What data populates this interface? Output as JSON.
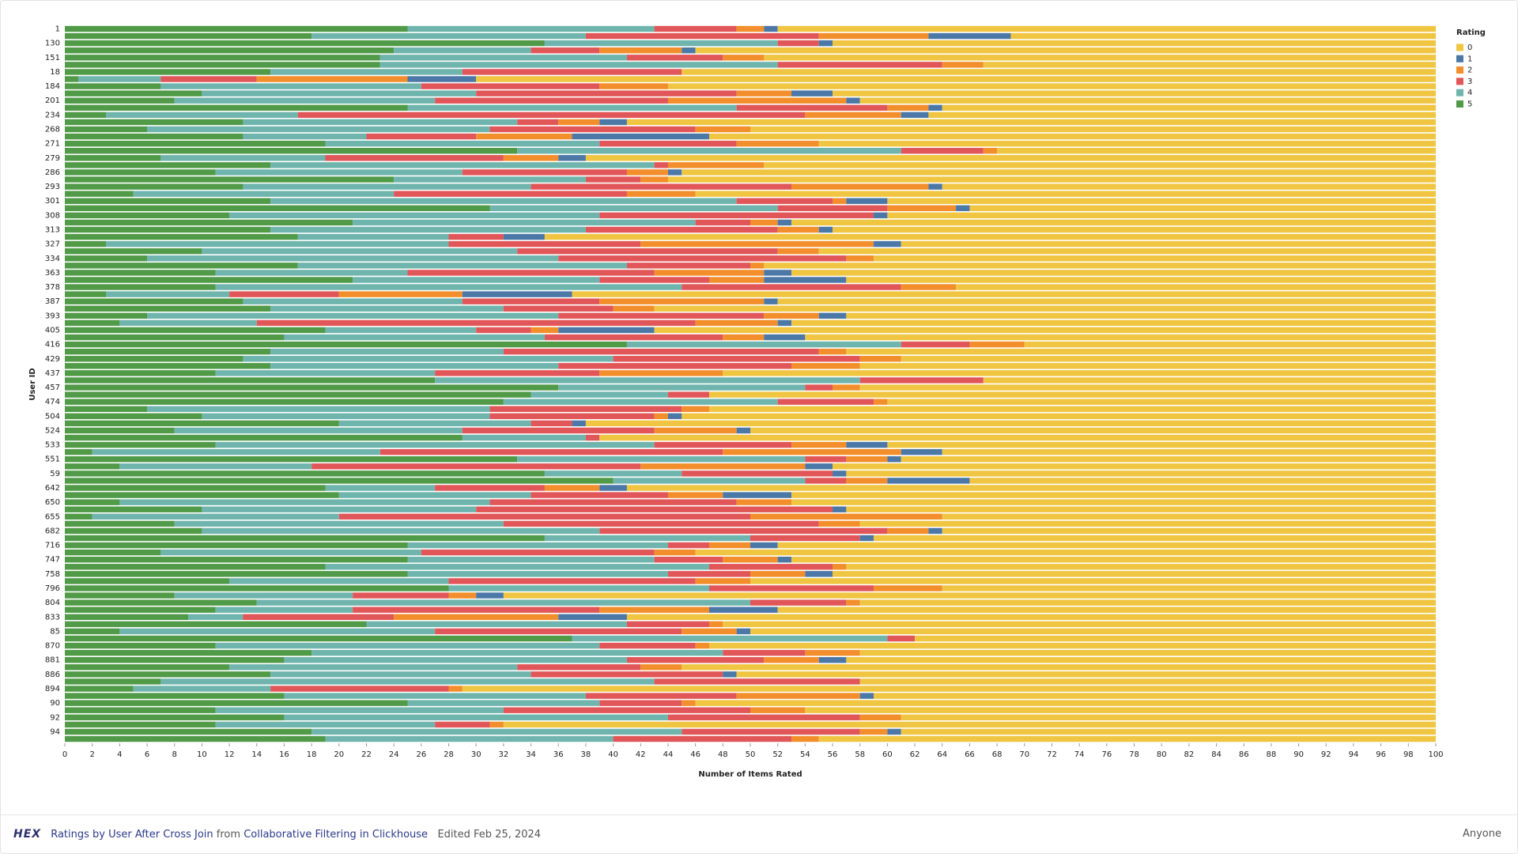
{
  "chart_data": {
    "type": "stacked-barh",
    "xlabel": "Number of Items Rated",
    "ylabel": "User ID",
    "legend_title": "Rating",
    "legend": "top-right",
    "categories": [
      "1",
      null,
      "130",
      null,
      "151",
      null,
      "18",
      null,
      "184",
      null,
      "201",
      null,
      "234",
      null,
      "268",
      null,
      "271",
      null,
      "279",
      null,
      "286",
      null,
      "293",
      null,
      "301",
      null,
      "308",
      null,
      "313",
      null,
      "327",
      null,
      "334",
      null,
      "363",
      null,
      "378",
      null,
      "387",
      null,
      "393",
      null,
      "405",
      null,
      "416",
      null,
      "429",
      null,
      "437",
      null,
      "457",
      null,
      "474",
      null,
      "504",
      null,
      "524",
      null,
      "533",
      null,
      "551",
      null,
      "59",
      null,
      "642",
      null,
      "650",
      null,
      "655",
      null,
      "682",
      null,
      "716",
      null,
      "747",
      null,
      "758",
      null,
      "796",
      null,
      "804",
      null,
      "833",
      null,
      "85",
      null,
      "870",
      null,
      "881",
      null,
      "886",
      null,
      "894",
      null,
      "90",
      null,
      "92",
      null,
      "94",
      null
    ],
    "series": [
      {
        "name": "0",
        "color": "#efc542",
        "values": [
          48,
          31,
          44,
          54,
          49,
          33,
          55,
          70,
          56,
          44,
          42,
          36,
          37,
          59,
          50,
          53,
          45,
          32,
          62,
          49,
          55,
          56,
          36,
          54,
          40,
          34,
          40,
          47,
          44,
          65,
          39,
          45,
          41,
          49,
          47,
          43,
          35,
          63,
          48,
          57,
          43,
          47,
          57,
          46,
          30,
          43,
          39,
          42,
          52,
          33,
          42,
          53,
          40,
          53,
          55,
          62,
          50,
          61,
          40,
          36,
          39,
          44,
          43,
          34,
          59,
          47,
          47,
          43,
          36,
          42,
          36,
          41,
          48,
          54,
          47,
          43,
          44,
          50,
          36,
          68,
          42,
          48,
          59,
          52,
          50,
          38,
          53,
          42,
          43,
          55,
          51,
          42,
          71,
          41,
          54,
          46,
          39,
          68,
          39,
          45
        ]
      },
      {
        "name": "1",
        "color": "#4c78a8",
        "values": [
          1,
          6,
          1,
          1,
          0,
          0,
          0,
          5,
          0,
          3,
          1,
          1,
          2,
          2,
          0,
          10,
          0,
          0,
          2,
          0,
          1,
          0,
          1,
          0,
          3,
          1,
          1,
          1,
          1,
          3,
          2,
          0,
          0,
          0,
          2,
          6,
          0,
          8,
          1,
          0,
          2,
          1,
          7,
          3,
          0,
          0,
          0,
          0,
          0,
          0,
          0,
          0,
          0,
          0,
          1,
          1,
          1,
          0,
          3,
          3,
          1,
          2,
          1,
          6,
          2,
          5,
          0,
          1,
          0,
          0,
          1,
          1,
          2,
          0,
          1,
          0,
          2,
          0,
          0,
          2,
          0,
          5,
          5,
          0,
          1,
          0,
          0,
          0,
          2,
          0,
          1,
          0,
          0,
          1,
          0,
          0,
          0,
          0,
          1,
          0
        ]
      },
      {
        "name": "2",
        "color": "#f28e2b",
        "values": [
          2,
          8,
          0,
          6,
          3,
          3,
          0,
          11,
          5,
          4,
          13,
          3,
          7,
          3,
          4,
          7,
          6,
          1,
          4,
          7,
          3,
          2,
          10,
          5,
          1,
          5,
          0,
          2,
          3,
          0,
          17,
          3,
          2,
          1,
          8,
          4,
          4,
          9,
          12,
          3,
          4,
          6,
          2,
          3,
          4,
          2,
          3,
          5,
          9,
          0,
          2,
          0,
          1,
          2,
          1,
          0,
          6,
          0,
          4,
          13,
          3,
          12,
          0,
          3,
          4,
          4,
          4,
          0,
          14,
          3,
          3,
          0,
          3,
          3,
          4,
          1,
          4,
          4,
          5,
          2,
          1,
          8,
          12,
          1,
          4,
          0,
          1,
          4,
          4,
          3,
          0,
          0,
          1,
          9,
          1,
          4,
          3,
          1,
          2,
          2
        ]
      },
      {
        "name": "3",
        "color": "#e15759",
        "values": [
          6,
          17,
          3,
          5,
          7,
          12,
          16,
          7,
          13,
          19,
          17,
          11,
          37,
          3,
          15,
          8,
          10,
          6,
          13,
          1,
          12,
          4,
          19,
          17,
          7,
          8,
          20,
          4,
          14,
          4,
          14,
          19,
          21,
          9,
          18,
          8,
          16,
          8,
          10,
          8,
          15,
          32,
          4,
          13,
          5,
          23,
          18,
          17,
          12,
          9,
          2,
          3,
          7,
          14,
          12,
          3,
          14,
          1,
          10,
          25,
          3,
          24,
          11,
          3,
          8,
          10,
          18,
          26,
          30,
          23,
          21,
          8,
          3,
          17,
          5,
          9,
          6,
          18,
          12,
          7,
          7,
          18,
          11,
          6,
          18,
          2,
          7,
          6,
          10,
          9,
          14,
          15,
          13,
          11,
          6,
          18,
          14,
          4,
          13,
          13
        ]
      },
      {
        "name": "4",
        "color": "#6fb5ad",
        "values": [
          18,
          20,
          17,
          10,
          18,
          29,
          14,
          6,
          19,
          20,
          19,
          24,
          14,
          20,
          25,
          9,
          20,
          28,
          12,
          28,
          18,
          14,
          21,
          19,
          34,
          21,
          27,
          25,
          23,
          11,
          25,
          23,
          30,
          24,
          14,
          18,
          34,
          9,
          16,
          17,
          30,
          10,
          11,
          19,
          20,
          17,
          27,
          21,
          16,
          31,
          18,
          10,
          20,
          25,
          21,
          14,
          21,
          9,
          32,
          21,
          21,
          14,
          10,
          14,
          8,
          14,
          27,
          20,
          18,
          24,
          29,
          15,
          19,
          19,
          18,
          28,
          19,
          16,
          19,
          13,
          36,
          10,
          4,
          19,
          23,
          23,
          28,
          30,
          25,
          21,
          19,
          36,
          10,
          22,
          14,
          21,
          28,
          16,
          27,
          21
        ]
      },
      {
        "name": "5",
        "color": "#519a48",
        "values": [
          25,
          18,
          35,
          24,
          23,
          23,
          15,
          1,
          7,
          10,
          8,
          25,
          3,
          13,
          6,
          13,
          19,
          33,
          7,
          15,
          11,
          24,
          13,
          5,
          15,
          31,
          12,
          21,
          15,
          17,
          3,
          10,
          6,
          17,
          11,
          21,
          11,
          3,
          13,
          15,
          6,
          4,
          19,
          16,
          41,
          15,
          13,
          15,
          11,
          27,
          36,
          34,
          32,
          6,
          10,
          20,
          8,
          29,
          11,
          2,
          33,
          4,
          35,
          40,
          19,
          20,
          4,
          10,
          2,
          8,
          10,
          35,
          25,
          7,
          25,
          19,
          25,
          12,
          28,
          8,
          14,
          11,
          9,
          22,
          4,
          37,
          11,
          18,
          16,
          12,
          15,
          7,
          5,
          16,
          25,
          11,
          16,
          11,
          18,
          19
        ]
      }
    ],
    "xlim": [
      0,
      100
    ],
    "xticks": [
      0,
      2,
      4,
      6,
      8,
      10,
      12,
      14,
      16,
      18,
      20,
      22,
      24,
      26,
      28,
      30,
      32,
      34,
      36,
      38,
      40,
      42,
      44,
      46,
      48,
      50,
      52,
      54,
      56,
      58,
      60,
      62,
      64,
      66,
      68,
      70,
      72,
      74,
      76,
      78,
      80,
      82,
      84,
      86,
      88,
      90,
      92,
      94,
      96,
      98,
      100
    ]
  },
  "footer": {
    "logo": "HEX",
    "title": "Ratings by User After Cross Join",
    "from": "from",
    "project": "Collaborative Filtering in Clickhouse",
    "edited": "Edited Feb 25, 2024",
    "share": "Anyone"
  }
}
